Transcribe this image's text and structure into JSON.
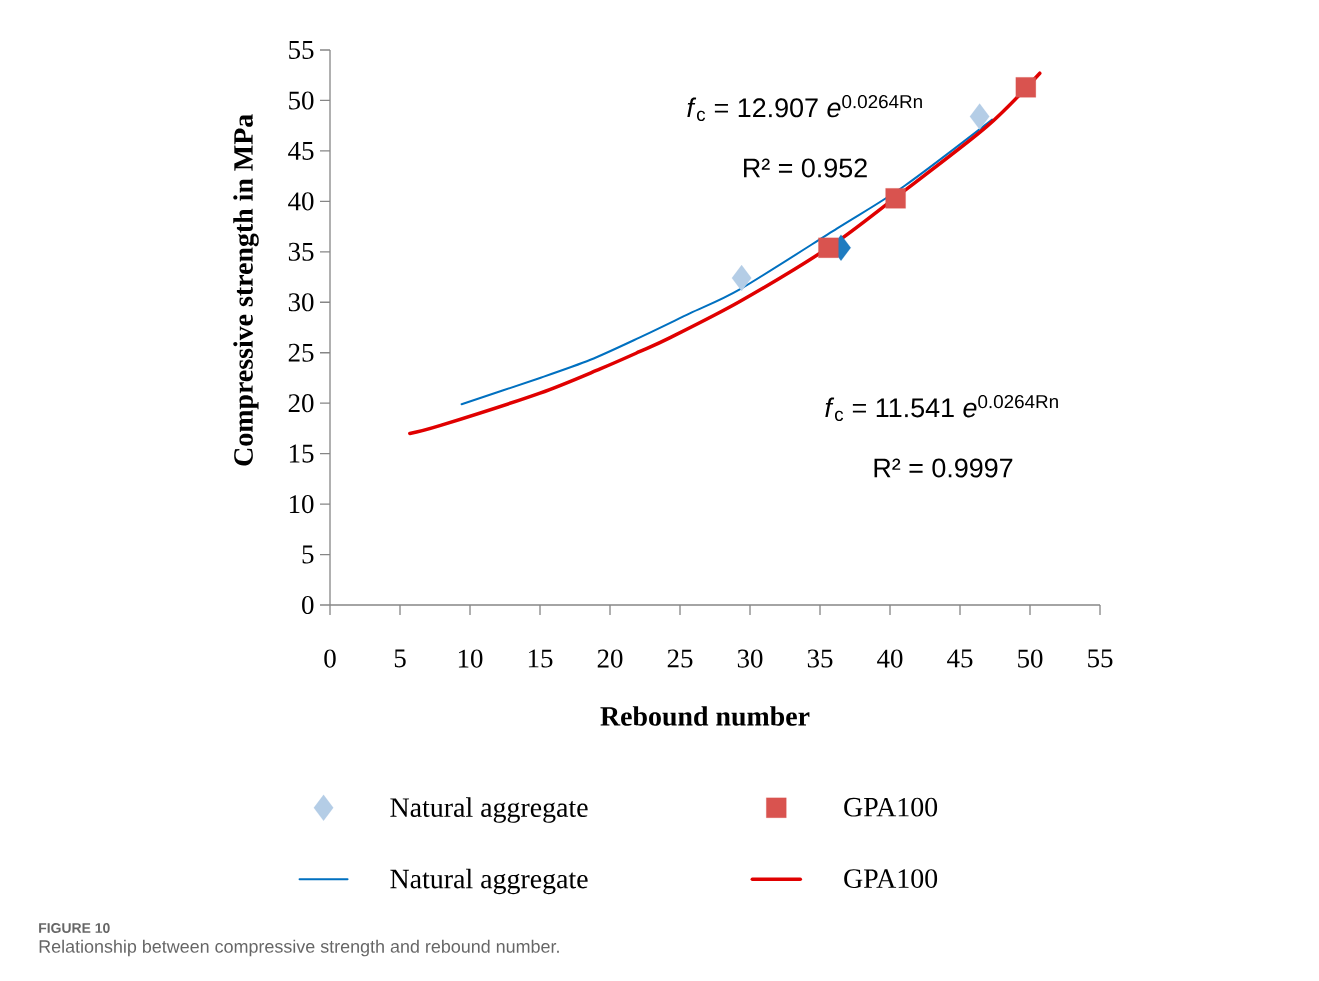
{
  "chart_data": {
    "type": "scatter",
    "xlabel": "Rebound number",
    "ylabel": "Compressive strength in MPa",
    "xlim": [
      0,
      55
    ],
    "ylim": [
      0,
      55
    ],
    "xticks": [
      0,
      5,
      10,
      15,
      20,
      25,
      30,
      35,
      40,
      45,
      50,
      55
    ],
    "yticks": [
      0,
      5,
      10,
      15,
      20,
      25,
      30,
      35,
      40,
      45,
      50,
      55
    ],
    "legend": "bottom",
    "series": [
      {
        "name": "Natural aggregate",
        "marker": "diamond",
        "color": "#b4cde6",
        "colors": [
          "#b4cde6",
          "#1f7cc0",
          "#b4cde6"
        ],
        "x": [
          29.4,
          36.5,
          46.4
        ],
        "values": [
          32.4,
          35.4,
          48.4
        ]
      },
      {
        "name": "GPA100",
        "marker": "square",
        "color": "#d9534f",
        "x": [
          35.6,
          40.4,
          49.7
        ],
        "values": [
          35.4,
          40.3,
          51.3
        ]
      },
      {
        "name": "Natural aggregate",
        "type": "line",
        "marker": "none",
        "line_style": "solid",
        "color": "#0070c0",
        "x": [
          9.4,
          15.0,
          18.6,
          22.1,
          25.7,
          29.3,
          36.2,
          41.0,
          47.3
        ],
        "values": [
          19.9,
          22.5,
          24.3,
          26.5,
          28.9,
          31.3,
          37.3,
          41.5,
          48.1
        ]
      },
      {
        "name": "GPA100",
        "type": "line",
        "marker": "none",
        "line_style": "solid",
        "color": "#e00000",
        "x": [
          5.7,
          7.9,
          15.0,
          19.3,
          22.1,
          24.3,
          29.3,
          35.7,
          40.5,
          46.9,
          50.7
        ],
        "values": [
          17.0,
          17.8,
          21.0,
          23.4,
          25.1,
          26.5,
          30.1,
          35.5,
          40.5,
          47.4,
          52.7
        ]
      }
    ],
    "annotations": [
      "*f*$_{c}$ = 12.907 *e*$^{0.0264Rn}$",
      "R² = 0.952",
      "*f*$_{c}$ = 11.541 *e*$^{0.0264Rn}$",
      "R² = 0.9997",
      "FIGURE 10",
      "Relationship between compressive strength and rebound number."
    ]
  }
}
